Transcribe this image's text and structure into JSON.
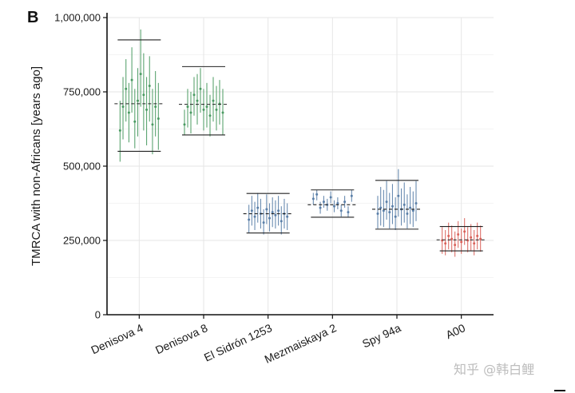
{
  "panel_label": "B",
  "watermark": "知乎 @韩白鲤",
  "chart_data": {
    "type": "scatter",
    "subtype": "error-bar-groups",
    "title": "",
    "xlabel": "",
    "ylabel": "TMRCA with non-Africans [years ago]",
    "ylim": [
      0,
      1000000
    ],
    "yticks": [
      0,
      250000,
      500000,
      750000,
      1000000
    ],
    "ytick_labels": [
      "0",
      "250,000",
      "500,000",
      "750,000",
      "1,000,000"
    ],
    "grid": true,
    "legend": "none",
    "categories": [
      "Denisova 4",
      "Denisova 8",
      "El Sidrón 1253",
      "Mezmaiskaya 2",
      "Spy 94a",
      "A00"
    ],
    "groups": [
      {
        "name": "Denisova 4",
        "color": "#4a9a62",
        "mean": 710000,
        "upper": 925000,
        "lower": 550000,
        "points": [
          {
            "y": 620000,
            "low": 515000,
            "high": 720000
          },
          {
            "y": 700000,
            "low": 590000,
            "high": 800000
          },
          {
            "y": 760000,
            "low": 650000,
            "high": 860000
          },
          {
            "y": 680000,
            "low": 580000,
            "high": 780000
          },
          {
            "y": 790000,
            "low": 680000,
            "high": 900000
          },
          {
            "y": 650000,
            "low": 560000,
            "high": 760000
          },
          {
            "y": 720000,
            "low": 600000,
            "high": 830000
          },
          {
            "y": 810000,
            "low": 700000,
            "high": 960000
          },
          {
            "y": 740000,
            "low": 620000,
            "high": 880000
          },
          {
            "y": 690000,
            "low": 570000,
            "high": 800000
          },
          {
            "y": 770000,
            "low": 650000,
            "high": 870000
          },
          {
            "y": 640000,
            "low": 540000,
            "high": 760000
          },
          {
            "y": 700000,
            "low": 600000,
            "high": 820000
          },
          {
            "y": 660000,
            "low": 555000,
            "high": 780000
          }
        ]
      },
      {
        "name": "Denisova 8",
        "color": "#4a9a62",
        "mean": 708000,
        "upper": 835000,
        "lower": 605000,
        "points": [
          {
            "y": 640000,
            "low": 605000,
            "high": 690000
          },
          {
            "y": 700000,
            "low": 630000,
            "high": 760000
          },
          {
            "y": 680000,
            "low": 610000,
            "high": 750000
          },
          {
            "y": 740000,
            "low": 670000,
            "high": 800000
          },
          {
            "y": 720000,
            "low": 640000,
            "high": 810000
          },
          {
            "y": 760000,
            "low": 680000,
            "high": 830000
          },
          {
            "y": 690000,
            "low": 620000,
            "high": 760000
          },
          {
            "y": 700000,
            "low": 630000,
            "high": 780000
          },
          {
            "y": 670000,
            "low": 600000,
            "high": 740000
          },
          {
            "y": 720000,
            "low": 650000,
            "high": 800000
          },
          {
            "y": 690000,
            "low": 620000,
            "high": 770000
          },
          {
            "y": 710000,
            "low": 640000,
            "high": 790000
          },
          {
            "y": 680000,
            "low": 605000,
            "high": 760000
          }
        ]
      },
      {
        "name": "El Sidrón 1253",
        "color": "#5a7fa8",
        "mean": 340000,
        "upper": 408000,
        "lower": 275000,
        "points": [
          {
            "y": 320000,
            "low": 275000,
            "high": 370000
          },
          {
            "y": 350000,
            "low": 300000,
            "high": 400000
          },
          {
            "y": 330000,
            "low": 285000,
            "high": 380000
          },
          {
            "y": 360000,
            "low": 310000,
            "high": 410000
          },
          {
            "y": 340000,
            "low": 290000,
            "high": 390000
          },
          {
            "y": 310000,
            "low": 270000,
            "high": 355000
          },
          {
            "y": 355000,
            "low": 305000,
            "high": 405000
          },
          {
            "y": 325000,
            "low": 280000,
            "high": 375000
          },
          {
            "y": 345000,
            "low": 295000,
            "high": 395000
          },
          {
            "y": 335000,
            "low": 290000,
            "high": 385000
          },
          {
            "y": 350000,
            "low": 300000,
            "high": 400000
          },
          {
            "y": 315000,
            "low": 270000,
            "high": 365000
          },
          {
            "y": 340000,
            "low": 290000,
            "high": 390000
          },
          {
            "y": 330000,
            "low": 285000,
            "high": 375000
          }
        ]
      },
      {
        "name": "Mezmaiskaya 2",
        "color": "#5a7fa8",
        "mean": 370000,
        "upper": 420000,
        "lower": 328000,
        "points": [
          {
            "y": 390000,
            "low": 370000,
            "high": 410000
          },
          {
            "y": 405000,
            "low": 385000,
            "high": 420000
          },
          {
            "y": 360000,
            "low": 340000,
            "high": 380000
          },
          {
            "y": 380000,
            "low": 360000,
            "high": 400000
          },
          {
            "y": 370000,
            "low": 350000,
            "high": 390000
          },
          {
            "y": 395000,
            "low": 375000,
            "high": 415000
          },
          {
            "y": 365000,
            "low": 345000,
            "high": 385000
          },
          {
            "y": 375000,
            "low": 355000,
            "high": 395000
          },
          {
            "y": 350000,
            "low": 330000,
            "high": 370000
          },
          {
            "y": 380000,
            "low": 360000,
            "high": 400000
          },
          {
            "y": 345000,
            "low": 328000,
            "high": 365000
          },
          {
            "y": 400000,
            "low": 380000,
            "high": 420000
          }
        ]
      },
      {
        "name": "Spy 94a",
        "color": "#5a7fa8",
        "mean": 355000,
        "upper": 452000,
        "lower": 288000,
        "points": [
          {
            "y": 340000,
            "low": 290000,
            "high": 400000
          },
          {
            "y": 360000,
            "low": 300000,
            "high": 430000
          },
          {
            "y": 350000,
            "low": 295000,
            "high": 420000
          },
          {
            "y": 380000,
            "low": 320000,
            "high": 450000
          },
          {
            "y": 345000,
            "low": 290000,
            "high": 410000
          },
          {
            "y": 365000,
            "low": 305000,
            "high": 440000
          },
          {
            "y": 330000,
            "low": 285000,
            "high": 395000
          },
          {
            "y": 400000,
            "low": 330000,
            "high": 490000
          },
          {
            "y": 355000,
            "low": 300000,
            "high": 425000
          },
          {
            "y": 370000,
            "low": 310000,
            "high": 445000
          },
          {
            "y": 340000,
            "low": 290000,
            "high": 405000
          },
          {
            "y": 360000,
            "low": 305000,
            "high": 430000
          },
          {
            "y": 350000,
            "low": 295000,
            "high": 415000
          },
          {
            "y": 375000,
            "low": 315000,
            "high": 450000
          }
        ]
      },
      {
        "name": "A00",
        "color": "#d9625a",
        "mean": 252000,
        "upper": 297000,
        "lower": 215000,
        "points": [
          {
            "y": 250000,
            "low": 205000,
            "high": 295000
          },
          {
            "y": 240000,
            "low": 200000,
            "high": 285000
          },
          {
            "y": 265000,
            "low": 220000,
            "high": 310000
          },
          {
            "y": 255000,
            "low": 210000,
            "high": 300000
          },
          {
            "y": 235000,
            "low": 195000,
            "high": 280000
          },
          {
            "y": 270000,
            "low": 225000,
            "high": 315000
          },
          {
            "y": 245000,
            "low": 205000,
            "high": 290000
          },
          {
            "y": 280000,
            "low": 235000,
            "high": 325000
          },
          {
            "y": 250000,
            "low": 210000,
            "high": 295000
          },
          {
            "y": 260000,
            "low": 215000,
            "high": 305000
          },
          {
            "y": 240000,
            "low": 200000,
            "high": 285000
          },
          {
            "y": 265000,
            "low": 220000,
            "high": 310000
          },
          {
            "y": 255000,
            "low": 212000,
            "high": 300000
          }
        ]
      }
    ]
  }
}
